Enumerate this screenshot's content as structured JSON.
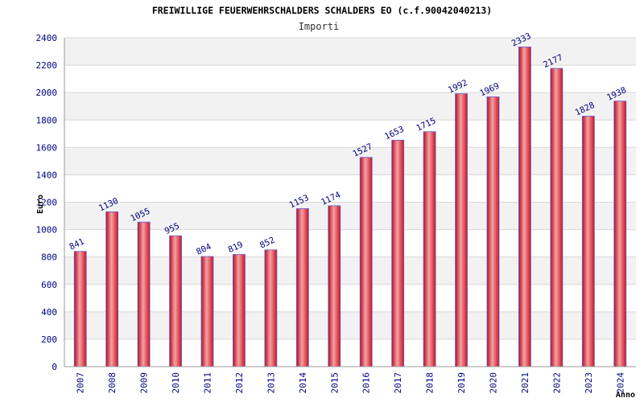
{
  "chart_data": {
    "type": "bar",
    "title": "FREIWILLIGE FEUERWEHRSCHALDERS SCHALDERS EO (c.f.90042040213)",
    "subtitle": "Importi",
    "xlabel": "Anno",
    "ylabel": "Euro",
    "ylim": [
      0,
      2400
    ],
    "yticks": [
      0,
      200,
      400,
      600,
      800,
      1000,
      1200,
      1400,
      1600,
      1800,
      2000,
      2200,
      2400
    ],
    "grid": true,
    "categories": [
      "2007",
      "2008",
      "2009",
      "2010",
      "2011",
      "2012",
      "2013",
      "2014",
      "2015",
      "2016",
      "2017",
      "2018",
      "2019",
      "2020",
      "2021",
      "2022",
      "2023",
      "2024"
    ],
    "values": [
      841,
      1130,
      1055,
      955,
      804,
      819,
      852,
      1153,
      1174,
      1527,
      1653,
      1715,
      1992,
      1969,
      2333,
      2177,
      1828,
      1938
    ],
    "colors": {
      "bar": "#e8303a",
      "bar_edge": "#6a5acd",
      "band": "#f2f2f2",
      "tick_text": "#000080"
    }
  }
}
